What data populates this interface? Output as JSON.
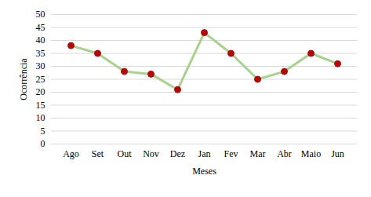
{
  "chart_data": {
    "type": "line",
    "x_label": "Meses",
    "y_label": "Ocorrência",
    "categories": [
      "Ago",
      "Set",
      "Out",
      "Nov",
      "Dez",
      "Jan",
      "Fev",
      "Mar",
      "Abr",
      "Maio",
      "Jun"
    ],
    "series": [
      {
        "name": "Ocorrência",
        "color": "#a9d18e",
        "marker": "circle",
        "line_style": "solid",
        "values": [
          38,
          35,
          28,
          27,
          21,
          43,
          35,
          25,
          28,
          35,
          31
        ]
      }
    ],
    "ylim": [
      0,
      50
    ],
    "yticks": [
      0,
      5,
      10,
      15,
      20,
      25,
      30,
      35,
      40,
      45,
      50
    ],
    "grid": true
  }
}
